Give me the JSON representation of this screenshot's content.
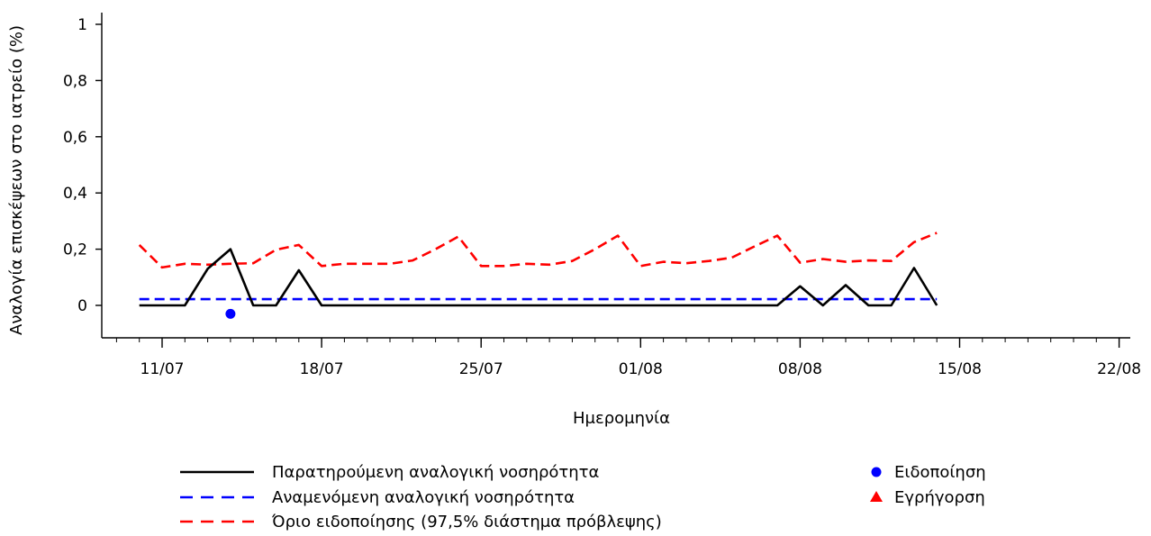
{
  "chart_data": {
    "type": "line",
    "xlabel": "Ημερομηνία",
    "ylabel": "Αναλογία επισκέψεων στο ιατρείο (%)",
    "ylim": [
      -0.1,
      1.05
    ],
    "xlim": [
      "2023-07-09",
      "2023-08-22"
    ],
    "x_ticks": [
      "11/07",
      "18/07",
      "25/07",
      "01/08",
      "08/08",
      "15/08",
      "22/08"
    ],
    "y_ticks": [
      "0",
      "0,2",
      "0,4",
      "0,6",
      "0,8",
      "1"
    ],
    "y_tick_values": [
      0,
      0.2,
      0.4,
      0.6,
      0.8,
      1
    ],
    "dates": [
      "2023-07-10",
      "2023-07-11",
      "2023-07-12",
      "2023-07-13",
      "2023-07-14",
      "2023-07-15",
      "2023-07-16",
      "2023-07-17",
      "2023-07-18",
      "2023-07-19",
      "2023-07-20",
      "2023-07-21",
      "2023-07-22",
      "2023-07-23",
      "2023-07-24",
      "2023-07-25",
      "2023-07-26",
      "2023-07-27",
      "2023-07-28",
      "2023-07-29",
      "2023-07-30",
      "2023-07-31",
      "2023-08-01",
      "2023-08-02",
      "2023-08-03",
      "2023-08-04",
      "2023-08-05",
      "2023-08-06",
      "2023-08-07",
      "2023-08-08",
      "2023-08-09",
      "2023-08-10",
      "2023-08-11",
      "2023-08-12",
      "2023-08-13",
      "2023-08-14"
    ],
    "series": [
      {
        "name": "Παρατηρούμενη αναλογική νοσηρότητα",
        "color": "#000000",
        "style": "solid",
        "values": [
          0,
          0,
          0,
          0.13,
          0.2,
          0,
          0,
          0.125,
          0,
          0,
          0,
          0,
          0,
          0,
          0,
          0,
          0,
          0,
          0,
          0,
          0,
          0,
          0,
          0,
          0,
          0,
          0,
          0,
          0,
          0.068,
          0,
          0.072,
          0,
          0,
          0.133,
          0
        ]
      },
      {
        "name": "Αναμενόμενη αναλογική νοσηρότητα",
        "color": "#0000ff",
        "style": "dashed",
        "values": [
          0.022,
          0.022,
          0.022,
          0.022,
          0.022,
          0.022,
          0.022,
          0.022,
          0.022,
          0.022,
          0.022,
          0.022,
          0.022,
          0.022,
          0.022,
          0.022,
          0.022,
          0.022,
          0.022,
          0.022,
          0.022,
          0.022,
          0.022,
          0.022,
          0.022,
          0.022,
          0.022,
          0.022,
          0.022,
          0.022,
          0.022,
          0.022,
          0.022,
          0.022,
          0.022,
          0.022
        ]
      },
      {
        "name": "Όριο ειδοποίησης (97,5% διάστημα πρόβλεψης)",
        "color": "#ff0000",
        "style": "dashed",
        "values": [
          0.215,
          0.135,
          0.148,
          0.145,
          0.148,
          0.15,
          0.198,
          0.215,
          0.14,
          0.148,
          0.148,
          0.148,
          0.16,
          0.2,
          0.245,
          0.14,
          0.14,
          0.148,
          0.145,
          0.158,
          0.2,
          0.248,
          0.14,
          0.155,
          0.15,
          0.158,
          0.17,
          0.21,
          0.248,
          0.152,
          0.165,
          0.155,
          0.16,
          0.158,
          0.225,
          0.258
        ]
      }
    ],
    "markers": [
      {
        "name": "Ειδοποίηση",
        "shape": "circle",
        "color": "#0000ff",
        "points": [
          {
            "x": "2023-07-14",
            "y": -0.03
          }
        ]
      },
      {
        "name": "Εγρήγορση",
        "shape": "triangle",
        "color": "#ff0000",
        "points": []
      }
    ]
  }
}
